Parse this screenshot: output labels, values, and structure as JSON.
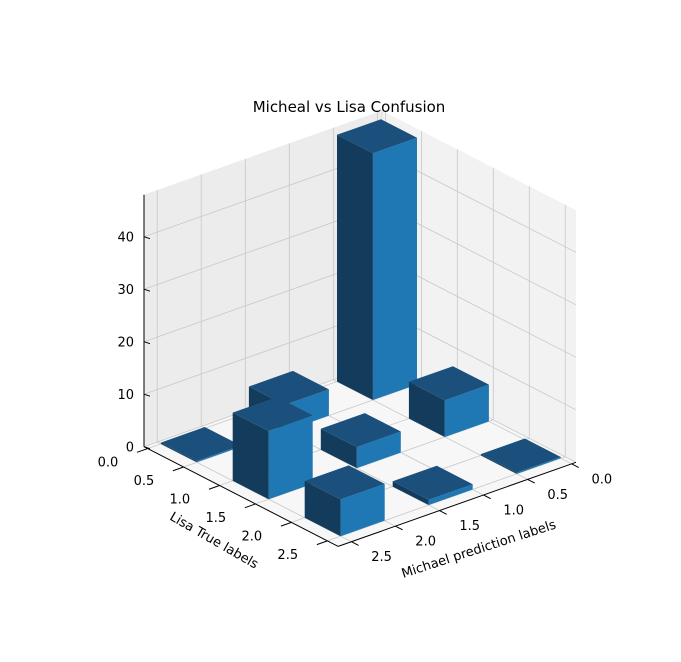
{
  "chart_data": {
    "type": "bar3d",
    "title": "Micheal vs Lisa Confusion",
    "xlabel": "Lisa True labels",
    "ylabel": "Michael prediction labels",
    "zlabel": "",
    "x_ticks": [
      "0.0",
      "0.5",
      "1.0",
      "1.5",
      "2.0",
      "2.5"
    ],
    "y_ticks": [
      "0.0",
      "0.5",
      "1.0",
      "1.5",
      "2.0",
      "2.5"
    ],
    "z_ticks": [
      "0",
      "10",
      "20",
      "30",
      "40"
    ],
    "xlim": [
      0,
      2.5
    ],
    "ylim": [
      0,
      2.5
    ],
    "zlim": [
      0,
      48
    ],
    "grid": true,
    "bars": [
      {
        "x": 0,
        "y": 0,
        "value": 47
      },
      {
        "x": 0,
        "y": 1,
        "value": 5
      },
      {
        "x": 0,
        "y": 2,
        "value": 0
      },
      {
        "x": 1,
        "y": 0,
        "value": 7
      },
      {
        "x": 1,
        "y": 1,
        "value": 4
      },
      {
        "x": 1,
        "y": 2,
        "value": 13
      },
      {
        "x": 2,
        "y": 0,
        "value": 0
      },
      {
        "x": 2,
        "y": 1,
        "value": 1
      },
      {
        "x": 2,
        "y": 2,
        "value": 7
      }
    ],
    "colors": {
      "top": "#1b4f7c",
      "front": "#1f77b4",
      "side": "#133c5c"
    }
  }
}
